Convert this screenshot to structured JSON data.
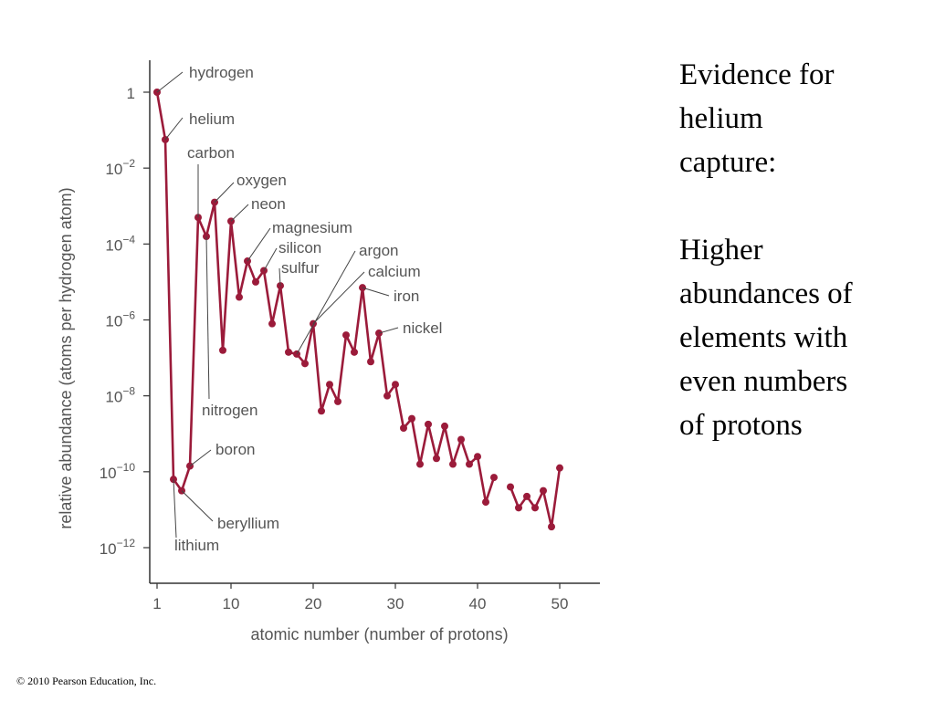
{
  "slide": {
    "heading_lines": [
      "Evidence for",
      "helium",
      "capture:"
    ],
    "body_lines": [
      "Higher",
      "abundances of",
      "elements with",
      "even numbers",
      "of protons"
    ],
    "footer": "© 2010 Pearson Education, Inc."
  },
  "colors": {
    "series": "#9b1b3a",
    "axis": "#333333",
    "text": "#555555"
  },
  "chart_data": {
    "type": "line",
    "title": "",
    "xlabel": "atomic number (number of protons)",
    "ylabel": "relative abundance (atoms per hydrogen atom)",
    "y_scale": "log",
    "xlim": [
      1,
      55
    ],
    "ylim": [
      -12.5,
      0.8
    ],
    "x_ticks": [
      {
        "value": 1,
        "label": "1"
      },
      {
        "value": 10,
        "label": "10"
      },
      {
        "value": 20,
        "label": "20"
      },
      {
        "value": 30,
        "label": "30"
      },
      {
        "value": 40,
        "label": "40"
      },
      {
        "value": 50,
        "label": "50"
      }
    ],
    "y_ticks": [
      {
        "exp": 0,
        "base": "1",
        "sup": ""
      },
      {
        "exp": -2,
        "base": "10",
        "sup": "−2"
      },
      {
        "exp": -4,
        "base": "10",
        "sup": "−4"
      },
      {
        "exp": -6,
        "base": "10",
        "sup": "−6"
      },
      {
        "exp": -8,
        "base": "10",
        "sup": "−8"
      },
      {
        "exp": -10,
        "base": "10",
        "sup": "−10"
      },
      {
        "exp": -12,
        "base": "10",
        "sup": "−12"
      }
    ],
    "series": [
      {
        "x": [
          1,
          2,
          3,
          4,
          5,
          6,
          7,
          8,
          9,
          10,
          11,
          12,
          13,
          14,
          15,
          16,
          17,
          18,
          19,
          20,
          21,
          22,
          23,
          24,
          25,
          26,
          27,
          28,
          29,
          30,
          31,
          32,
          33,
          34,
          35,
          36,
          37,
          38,
          39,
          40,
          41,
          42
        ],
        "log10_y": [
          0,
          -1.25,
          -10.2,
          -10.5,
          -9.85,
          -3.3,
          -3.8,
          -2.9,
          -6.8,
          -3.4,
          -5.4,
          -4.45,
          -5.0,
          -4.7,
          -6.1,
          -5.1,
          -6.85,
          -6.9,
          -7.15,
          -6.1,
          -8.4,
          -7.7,
          -8.15,
          -6.4,
          -6.85,
          -5.15,
          -7.1,
          -6.35,
          -8.0,
          -7.7,
          -8.85,
          -8.6,
          -9.8,
          -8.75,
          -9.65,
          -8.8,
          -9.8,
          -9.15,
          -9.8,
          -9.6,
          -10.8,
          -10.15
        ]
      },
      {
        "x": [
          44,
          45,
          46,
          47,
          48,
          49,
          50
        ],
        "log10_y": [
          -10.4,
          -10.95,
          -10.65,
          -10.95,
          -10.5,
          -11.45,
          -9.9
        ]
      }
    ],
    "annotations": [
      {
        "text": "hydrogen",
        "x": 1
      },
      {
        "text": "helium",
        "x": 2
      },
      {
        "text": "carbon",
        "x": 6
      },
      {
        "text": "oxygen",
        "x": 8
      },
      {
        "text": "neon",
        "x": 10
      },
      {
        "text": "magnesium",
        "x": 12
      },
      {
        "text": "silicon",
        "x": 14
      },
      {
        "text": "sulfur",
        "x": 16
      },
      {
        "text": "argon",
        "x": 18
      },
      {
        "text": "calcium",
        "x": 20
      },
      {
        "text": "iron",
        "x": 26
      },
      {
        "text": "nickel",
        "x": 28
      },
      {
        "text": "nitrogen",
        "x": 7
      },
      {
        "text": "boron",
        "x": 5
      },
      {
        "text": "beryllium",
        "x": 4
      },
      {
        "text": "lithium",
        "x": 3
      }
    ]
  }
}
